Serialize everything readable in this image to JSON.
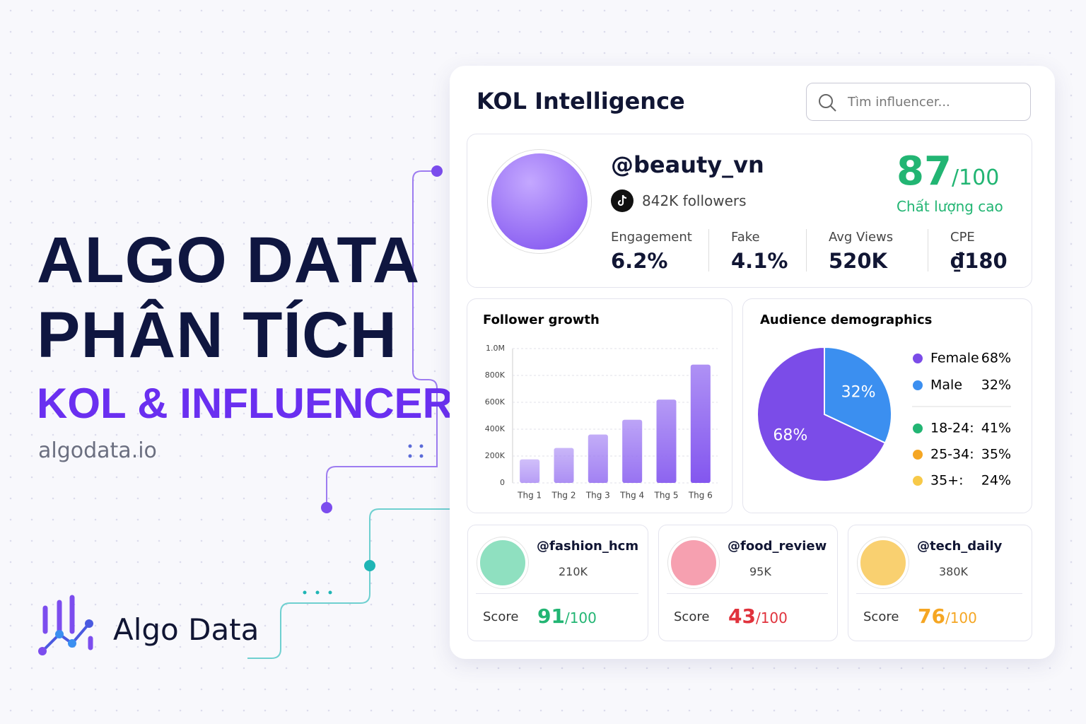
{
  "hero": {
    "title_line1": "ALGO DATA",
    "title_line2": "PHÂN TÍCH",
    "subtitle": "KOL & INFLUENCER",
    "url": "algodata.io",
    "brand": "Algo Data"
  },
  "dashboard": {
    "title": "KOL Intelligence",
    "search_placeholder": "Tìm influencer...",
    "profile": {
      "handle": "@beauty_vn",
      "followers": "842K followers",
      "score": "87",
      "score_max": "/100",
      "score_label": "Chất lượng cao",
      "metrics": [
        {
          "label": "Engagement",
          "value": "6.2%"
        },
        {
          "label": "Fake",
          "value": "4.1%"
        },
        {
          "label": "Avg Views",
          "value": "520K"
        },
        {
          "label": "CPE",
          "value": "₫180"
        }
      ]
    },
    "age_groups": [
      {
        "label": "18-24:",
        "value": "41%",
        "color": "#22b573"
      },
      {
        "label": "25-34:",
        "value": "35%",
        "color": "#f5a623"
      },
      {
        "label": "35+:",
        "value": "24%",
        "color": "#f7c948"
      }
    ],
    "kols": [
      {
        "handle": "@fashion_hcm",
        "followers": "210K",
        "score_label": "Score",
        "score": "91",
        "score_max": "/100",
        "color": "#22b573"
      },
      {
        "handle": "@food_review",
        "followers": "95K",
        "score_label": "Score",
        "score": "43",
        "score_max": "/100",
        "color": "#e0323c"
      },
      {
        "handle": "@tech_daily",
        "followers": "380K",
        "score_label": "Score",
        "score": "76",
        "score_max": "/100",
        "color": "#f5a623"
      }
    ]
  },
  "chart_data": [
    {
      "type": "bar",
      "title": "Follower growth",
      "categories": [
        "Thg 1",
        "Thg 2",
        "Thg 3",
        "Thg 4",
        "Thg 5",
        "Thg 6"
      ],
      "values": [
        175000,
        260000,
        360000,
        470000,
        620000,
        880000
      ],
      "color": "#7c4dee",
      "ylim": [
        0,
        1000000
      ],
      "yticks": [
        0,
        {
          "value": 200000,
          "label": "200K"
        },
        {
          "value": 400000,
          "label": "400K"
        },
        {
          "value": 600000,
          "label": "600K"
        },
        {
          "value": 800000,
          "label": "800K"
        },
        {
          "value": 1000000,
          "label": "1.0M"
        }
      ],
      "grid": true
    },
    {
      "type": "pie",
      "title": "Audience demographics",
      "series": [
        {
          "name": "Female",
          "color": "#7b4ce8",
          "values": [
            68
          ],
          "value_labels": [
            "68%"
          ]
        },
        {
          "name": "Male",
          "color": "#3b8ff0",
          "values": [
            32
          ],
          "value_labels": [
            "32%"
          ]
        }
      ]
    }
  ]
}
